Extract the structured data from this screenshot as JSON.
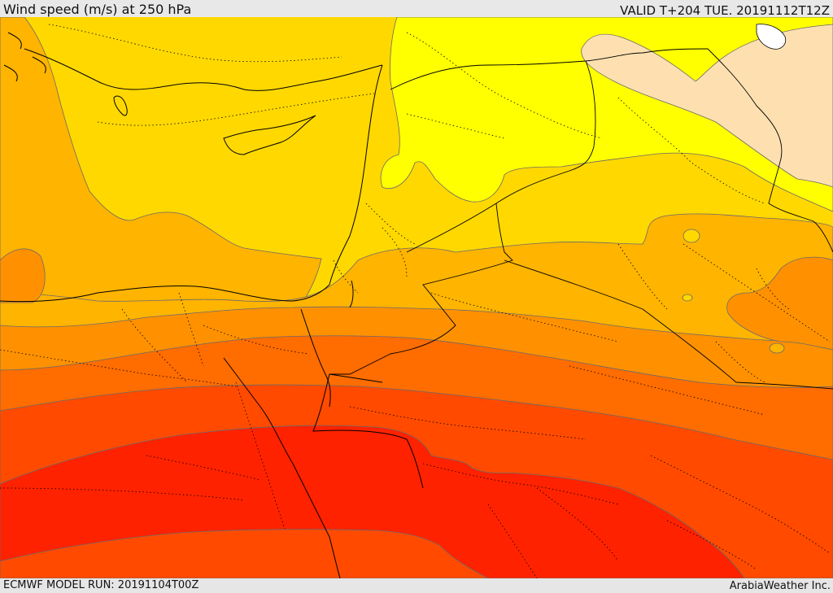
{
  "header": {
    "title": "Wind speed (m/s) at 250 hPa",
    "valid_time": "VALID T+204 TUE. 20191112T12Z"
  },
  "footer": {
    "model_run": "ECMWF MODEL RUN: 20191104T00Z",
    "credit": "ArabiaWeather Inc."
  },
  "colors": {
    "band_1": "#ffff00",
    "band_2": "#ffd800",
    "band_3": "#ffb400",
    "band_4": "#ff9100",
    "band_5": "#ff6c00",
    "band_6": "#ff4a00",
    "band_7": "#ff2200",
    "cream_region": "#fee0b0",
    "contour_line": "#6a6a6a",
    "border_line": "#000000",
    "lake_fill": "#ffffff"
  }
}
